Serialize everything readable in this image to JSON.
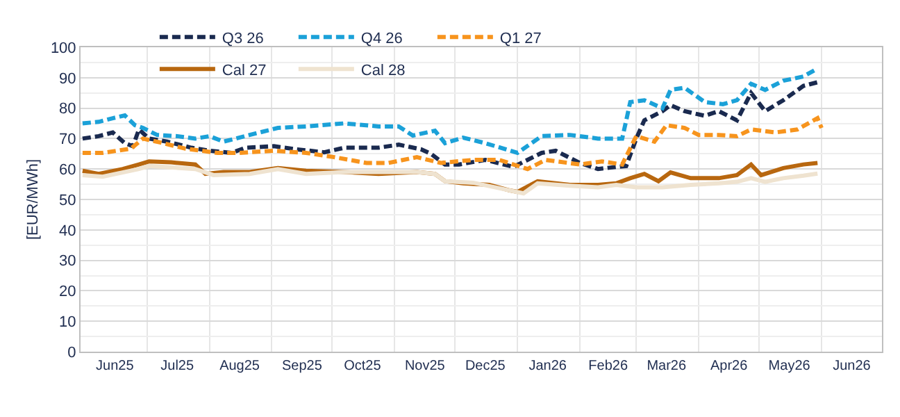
{
  "chart_data": {
    "type": "line",
    "ylabel": "[EUR/MWh]",
    "xlim": [
      "2025-05-29",
      "2026-07-01"
    ],
    "ylim": [
      0,
      100
    ],
    "xticks": [
      {
        "value": "2025-06-15",
        "label": "Jun25"
      },
      {
        "value": "2025-07-01",
        "label": null
      },
      {
        "value": "2025-07-16",
        "label": "Jul25"
      },
      {
        "value": "2025-08-01",
        "label": null
      },
      {
        "value": "2025-08-16",
        "label": "Aug25"
      },
      {
        "value": "2025-09-01",
        "label": null
      },
      {
        "value": "2025-09-16",
        "label": "Sep25"
      },
      {
        "value": "2025-10-01",
        "label": null
      },
      {
        "value": "2025-10-16",
        "label": "Oct25"
      },
      {
        "value": "2025-11-01",
        "label": null
      },
      {
        "value": "2025-11-16",
        "label": "Nov25"
      },
      {
        "value": "2025-12-01",
        "label": null
      },
      {
        "value": "2025-12-16",
        "label": "Dec25"
      },
      {
        "value": "2026-01-01",
        "label": null
      },
      {
        "value": "2026-01-16",
        "label": "Jan26"
      },
      {
        "value": "2026-02-01",
        "label": null
      },
      {
        "value": "2026-02-15",
        "label": "Feb26"
      },
      {
        "value": "2026-03-01",
        "label": null
      },
      {
        "value": "2026-03-16",
        "label": "Mar26"
      },
      {
        "value": "2026-04-01",
        "label": null
      },
      {
        "value": "2026-04-16",
        "label": "Apr26"
      },
      {
        "value": "2026-05-01",
        "label": null
      },
      {
        "value": "2026-05-16",
        "label": "May26"
      },
      {
        "value": "2026-06-01",
        "label": null
      },
      {
        "value": "2026-06-16",
        "label": "Jun26"
      }
    ],
    "yticks": [
      0,
      {
        "value": 5,
        "label": null
      },
      10,
      {
        "value": 15,
        "label": null
      },
      20,
      {
        "value": 25,
        "label": null
      },
      30,
      {
        "value": 35,
        "label": null
      },
      40,
      {
        "value": 45,
        "label": null
      },
      50,
      {
        "value": 55,
        "label": null
      },
      60,
      {
        "value": 65,
        "label": null
      },
      70,
      {
        "value": 75,
        "label": null
      },
      80,
      {
        "value": 85,
        "label": null
      },
      90,
      {
        "value": 95,
        "label": null
      },
      100
    ],
    "grid": true,
    "legend": "top left",
    "marker": "none",
    "series": [
      {
        "name": "Q3 26",
        "color": "#1a2a4f",
        "line_style": "dashed",
        "x": [
          "2025-05-30",
          "2025-06-07",
          "2025-06-14",
          "2025-06-20",
          "2025-06-24",
          "2025-06-27",
          "2025-07-02",
          "2025-07-11",
          "2025-07-23",
          "2025-08-01",
          "2025-08-12",
          "2025-08-19",
          "2025-09-02",
          "2025-09-13",
          "2025-09-27",
          "2025-10-07",
          "2025-10-24",
          "2025-11-03",
          "2025-11-14",
          "2025-11-19",
          "2025-11-26",
          "2025-12-03",
          "2025-12-16",
          "2025-12-30",
          "2026-01-13",
          "2026-01-20",
          "2026-02-01",
          "2026-02-10",
          "2026-02-19",
          "2026-02-24",
          "2026-03-01",
          "2026-03-05",
          "2026-03-14",
          "2026-03-18",
          "2026-03-25",
          "2026-04-04",
          "2026-04-11",
          "2026-04-20",
          "2026-04-27",
          "2026-05-04",
          "2026-05-13",
          "2026-05-23",
          "2026-05-30"
        ],
        "values": [
          70,
          70.8,
          72,
          68.5,
          67.5,
          73,
          70,
          69,
          67,
          66,
          65.3,
          67,
          67.5,
          66.5,
          65.5,
          67,
          67,
          68,
          66.5,
          65,
          61.5,
          61.5,
          63,
          60.7,
          65.3,
          66,
          62,
          60,
          60.7,
          61,
          70,
          76,
          79,
          81,
          79,
          77.5,
          79,
          76,
          85,
          79,
          82.6,
          87.3,
          88.5
        ]
      },
      {
        "name": "Q4 26",
        "color": "#1ba1d8",
        "line_style": "dashed",
        "x": [
          "2025-05-30",
          "2025-06-07",
          "2025-06-14",
          "2025-06-20",
          "2025-06-25",
          "2025-06-29",
          "2025-07-06",
          "2025-07-16",
          "2025-07-25",
          "2025-08-01",
          "2025-08-08",
          "2025-08-21",
          "2025-09-04",
          "2025-09-18",
          "2025-10-07",
          "2025-10-24",
          "2025-11-03",
          "2025-11-10",
          "2025-11-21",
          "2025-11-26",
          "2025-12-05",
          "2025-12-16",
          "2026-01-01",
          "2026-01-13",
          "2026-01-27",
          "2026-02-10",
          "2026-02-22",
          "2026-02-26",
          "2026-03-05",
          "2026-03-14",
          "2026-03-18",
          "2026-03-25",
          "2026-04-04",
          "2026-04-13",
          "2026-04-20",
          "2026-04-27",
          "2026-05-04",
          "2026-05-13",
          "2026-05-23",
          "2026-05-30"
        ],
        "values": [
          75,
          75.5,
          76.7,
          77.6,
          74.4,
          73.5,
          71.2,
          70.8,
          70,
          70.8,
          69,
          71.2,
          73.5,
          74,
          75,
          74,
          74,
          71,
          72.6,
          68.5,
          70.3,
          68.5,
          65.3,
          70.8,
          71.2,
          70,
          70,
          82,
          82.6,
          80,
          86,
          86.7,
          82,
          81.3,
          82.6,
          88,
          86,
          89,
          90.4,
          93
        ]
      },
      {
        "name": "Q1 27",
        "color": "#f7941d",
        "line_style": "dashed",
        "x": [
          "2025-05-30",
          "2025-06-09",
          "2025-06-23",
          "2025-06-29",
          "2025-07-09",
          "2025-07-20",
          "2025-08-05",
          "2025-08-16",
          "2025-09-02",
          "2025-09-18",
          "2025-10-02",
          "2025-10-18",
          "2025-10-29",
          "2025-11-12",
          "2025-11-24",
          "2025-12-10",
          "2025-12-23",
          "2026-01-06",
          "2026-01-15",
          "2026-02-01",
          "2026-02-12",
          "2026-02-22",
          "2026-03-01",
          "2026-03-10",
          "2026-03-16",
          "2026-03-25",
          "2026-04-01",
          "2026-04-11",
          "2026-04-20",
          "2026-04-27",
          "2026-05-09",
          "2026-05-20",
          "2026-05-30",
          "2026-06-01"
        ],
        "values": [
          65.3,
          65.3,
          66.7,
          70,
          68.5,
          66.7,
          65.3,
          65.3,
          66,
          65.3,
          63.9,
          62,
          62,
          63.9,
          62,
          63,
          63,
          60,
          63,
          61.5,
          62.5,
          61.5,
          70.8,
          69,
          74.4,
          73.5,
          71.2,
          71.2,
          70.8,
          73,
          72,
          73,
          76.7,
          73.5
        ]
      },
      {
        "name": "Cal 27",
        "color": "#b8670f",
        "line_style": "solid",
        "x": [
          "2025-05-30",
          "2025-06-07",
          "2025-06-19",
          "2025-06-27",
          "2025-07-02",
          "2025-07-13",
          "2025-07-25",
          "2025-07-30",
          "2025-08-08",
          "2025-08-21",
          "2025-09-04",
          "2025-09-18",
          "2025-10-07",
          "2025-10-24",
          "2025-11-12",
          "2025-11-21",
          "2025-11-26",
          "2025-12-05",
          "2025-12-18",
          "2025-12-28",
          "2026-01-01",
          "2026-01-11",
          "2026-01-27",
          "2026-02-10",
          "2026-02-19",
          "2026-02-26",
          "2026-03-05",
          "2026-03-12",
          "2026-03-18",
          "2026-03-28",
          "2026-04-11",
          "2026-04-20",
          "2026-04-27",
          "2026-05-02",
          "2026-05-13",
          "2026-05-23",
          "2026-05-30"
        ],
        "values": [
          59.4,
          58.4,
          60,
          61.5,
          62.5,
          62.2,
          61.5,
          58.4,
          59,
          59,
          60.3,
          59.4,
          59,
          58.4,
          59,
          58.4,
          56,
          55.3,
          54.8,
          53,
          52.5,
          56,
          54.8,
          54.8,
          55.3,
          57,
          58.4,
          56,
          58.9,
          57,
          57,
          58,
          61.5,
          58,
          60.3,
          61.5,
          62
        ]
      },
      {
        "name": "Cal 28",
        "color": "#efe3d0",
        "line_style": "solid",
        "x": [
          "2025-05-30",
          "2025-06-09",
          "2025-06-27",
          "2025-07-02",
          "2025-07-25",
          "2025-08-03",
          "2025-08-21",
          "2025-09-04",
          "2025-09-18",
          "2025-10-07",
          "2025-11-12",
          "2025-11-21",
          "2025-11-26",
          "2025-12-10",
          "2025-12-28",
          "2026-01-04",
          "2026-01-11",
          "2026-01-27",
          "2026-02-10",
          "2026-02-19",
          "2026-03-01",
          "2026-03-14",
          "2026-03-28",
          "2026-04-11",
          "2026-04-20",
          "2026-04-27",
          "2026-05-04",
          "2026-05-13",
          "2026-05-23",
          "2026-05-30"
        ],
        "values": [
          58,
          57.5,
          60,
          61,
          60,
          58,
          58.4,
          60,
          58.4,
          59,
          59,
          58.4,
          56,
          55.5,
          53,
          52,
          55.3,
          54.5,
          54,
          54.8,
          54,
          54,
          54.8,
          55.3,
          55.8,
          57,
          55.8,
          57,
          57.8,
          58.5
        ]
      }
    ]
  }
}
